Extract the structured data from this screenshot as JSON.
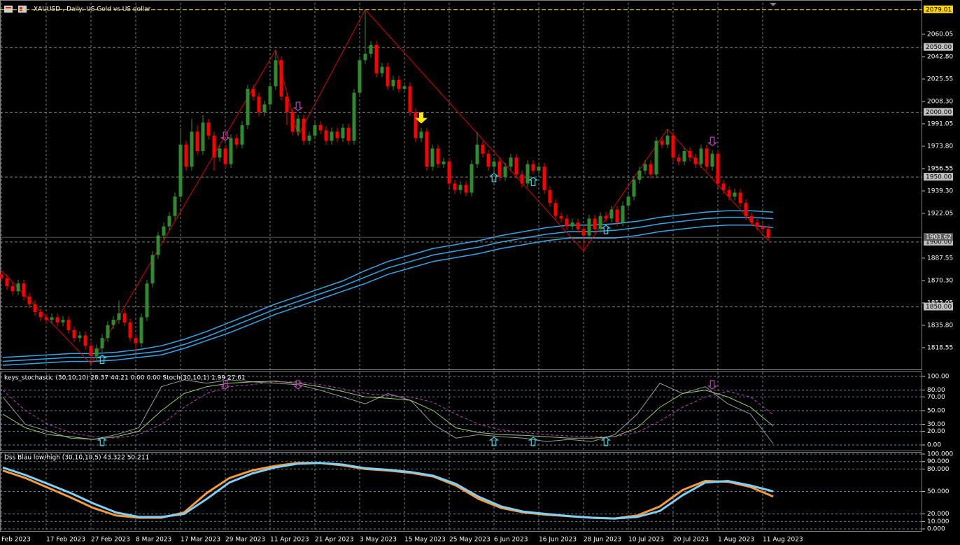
{
  "chart_data": [
    {
      "type": "candlestick",
      "title": "XAUUSD-, Daily:  US Gold vs US dollar",
      "categories": [
        "Feb 2023",
        null,
        null,
        null,
        null,
        null,
        null,
        null,
        "17 Feb 2023",
        null,
        null,
        null,
        null,
        null,
        null,
        null,
        "27 Feb 2023",
        null,
        null,
        null,
        null,
        null,
        null,
        null,
        "8 Mar 2023",
        null,
        null,
        null,
        null,
        null,
        null,
        null,
        "17 Mar 2023",
        null,
        null,
        null,
        null,
        null,
        null,
        null,
        "29 Mar 2023",
        null,
        null,
        null,
        null,
        null,
        null,
        null,
        "11 Apr 2023",
        null,
        null,
        null,
        null,
        null,
        null,
        null,
        "21 Apr 2023",
        null,
        null,
        null,
        null,
        null,
        null,
        null,
        "3 May 2023",
        null,
        null,
        null,
        null,
        null,
        null,
        null,
        "15 May 2023",
        null,
        null,
        null,
        null,
        null,
        null,
        null,
        "25 May 2023",
        null,
        null,
        null,
        null,
        null,
        null,
        null,
        "6 Jun 2023",
        null,
        null,
        null,
        null,
        null,
        null,
        null,
        "16 Jun 2023",
        null,
        null,
        null,
        null,
        null,
        null,
        null,
        "28 Jun 2023",
        null,
        null,
        null,
        null,
        null,
        null,
        null,
        "10 Jul 2023",
        null,
        null,
        null,
        null,
        null,
        null,
        null,
        "20 Jul 2023",
        null,
        null,
        null,
        null,
        null,
        null,
        null,
        "1 Aug 2023",
        null,
        null,
        null,
        null,
        null,
        null,
        null,
        "11 Aug 2023",
        null
      ],
      "open": [
        1875,
        1872,
        1866,
        1862,
        1868,
        1858,
        1852,
        1846,
        1842,
        1840,
        1842,
        1838,
        1840,
        1832,
        1826,
        1828,
        1820,
        1812,
        1818,
        1826,
        1836,
        1840,
        1845,
        1838,
        1826,
        1822,
        1842,
        1868,
        1890,
        1905,
        1912,
        1920,
        1935,
        1975,
        1958,
        1985,
        1970,
        1992,
        1982,
        1965,
        1972,
        1960,
        1980,
        1975,
        1990,
        2018,
        2012,
        2000,
        2006,
        2020,
        2040,
        2012,
        2000,
        1985,
        1995,
        1978,
        1982,
        1990,
        1986,
        1978,
        1985,
        1980,
        1988,
        1978,
        2015,
        2040,
        2045,
        2052,
        2030,
        2035,
        2020,
        2025,
        2018,
        2020,
        2000,
        1980,
        1985,
        1958,
        1972,
        1960,
        1962,
        1945,
        1940,
        1944,
        1938,
        1960,
        1975,
        1968,
        1958,
        1962,
        1950,
        1958,
        1965,
        1952,
        1945,
        1960,
        1955,
        1958,
        1940,
        1930,
        1920,
        1918,
        1912,
        1915,
        1910,
        1905,
        1918,
        1910,
        1920,
        1918,
        1925,
        1915,
        1928,
        1935,
        1948,
        1955,
        1960,
        1952,
        1978,
        1975,
        1982,
        1965,
        1962,
        1970,
        1965,
        1960,
        1972,
        1958,
        1968,
        1945,
        1940,
        1935,
        1938,
        1930,
        1920,
        1915,
        1912,
        1910
      ],
      "high": [
        1878,
        1875,
        1869,
        1871,
        1871,
        1861,
        1855,
        1849,
        1845,
        1845,
        1845,
        1843,
        1843,
        1835,
        1831,
        1831,
        1823,
        1821,
        1829,
        1839,
        1843,
        1855,
        1848,
        1841,
        1829,
        1845,
        1871,
        1893,
        1908,
        1915,
        1923,
        1938,
        1988,
        1978,
        1995,
        1990,
        1998,
        1995,
        1985,
        1975,
        1975,
        1983,
        1983,
        1993,
        2021,
        2021,
        2015,
        2009,
        2023,
        2048,
        2043,
        2015,
        2003,
        1998,
        1998,
        1985,
        1993,
        1993,
        1989,
        1988,
        1988,
        1991,
        1991,
        2018,
        2043,
        2079.01,
        2055,
        2055,
        2038,
        2038,
        2028,
        2028,
        2023,
        2023,
        2003,
        1988,
        1988,
        1975,
        1975,
        1965,
        1965,
        1948,
        1947,
        1947,
        1963,
        1985,
        1978,
        1971,
        1965,
        1965,
        1961,
        1968,
        1968,
        1955,
        1963,
        1963,
        1961,
        1961,
        1943,
        1933,
        1923,
        1921,
        1918,
        1918,
        1913,
        1921,
        1921,
        1923,
        1923,
        1928,
        1928,
        1931,
        1938,
        1951,
        1958,
        1963,
        1963,
        1981,
        1981,
        1987,
        1985,
        1968,
        1973,
        1973,
        1968,
        1975,
        1975,
        1971,
        1971,
        1948,
        1943,
        1941,
        1941,
        1933,
        1923,
        1918,
        1915,
        1913
      ],
      "low": [
        1869,
        1863,
        1859,
        1859,
        1855,
        1849,
        1843,
        1839,
        1837,
        1837,
        1835,
        1835,
        1829,
        1823,
        1823,
        1817,
        1806,
        1809,
        1815,
        1823,
        1833,
        1837,
        1835,
        1823,
        1815,
        1819,
        1839,
        1865,
        1887,
        1902,
        1909,
        1917,
        1932,
        1955,
        1955,
        1967,
        1967,
        1979,
        1955,
        1962,
        1957,
        1957,
        1972,
        1972,
        1987,
        2009,
        1997,
        1997,
        2003,
        2017,
        2009,
        1990,
        1982,
        1982,
        1975,
        1975,
        1979,
        1983,
        1975,
        1975,
        1977,
        1977,
        1975,
        1975,
        2012,
        2037,
        2042,
        2027,
        2027,
        2017,
        2017,
        2015,
        2015,
        1997,
        1977,
        1977,
        1955,
        1955,
        1957,
        1957,
        1942,
        1937,
        1937,
        1935,
        1935,
        1957,
        1965,
        1955,
        1955,
        1947,
        1947,
        1955,
        1949,
        1942,
        1942,
        1952,
        1952,
        1937,
        1927,
        1917,
        1915,
        1909,
        1909,
        1907,
        1893,
        1902,
        1907,
        1907,
        1915,
        1915,
        1912,
        1912,
        1925,
        1932,
        1945,
        1952,
        1949,
        1949,
        1972,
        1972,
        1962,
        1959,
        1959,
        1962,
        1957,
        1957,
        1955,
        1955,
        1942,
        1937,
        1932,
        1932,
        1927,
        1917,
        1912,
        1909,
        1907,
        1901
      ],
      "close": [
        1872,
        1866,
        1862,
        1868,
        1858,
        1852,
        1846,
        1842,
        1840,
        1842,
        1838,
        1840,
        1832,
        1826,
        1828,
        1820,
        1812,
        1818,
        1826,
        1836,
        1840,
        1845,
        1838,
        1826,
        1822,
        1842,
        1868,
        1890,
        1905,
        1912,
        1920,
        1935,
        1975,
        1958,
        1985,
        1970,
        1992,
        1982,
        1965,
        1972,
        1960,
        1980,
        1975,
        1990,
        2018,
        2012,
        2000,
        2006,
        2020,
        2040,
        2012,
        2000,
        1985,
        1995,
        1978,
        1982,
        1990,
        1986,
        1978,
        1985,
        1980,
        1988,
        1978,
        2015,
        2040,
        2045,
        2052,
        2030,
        2035,
        2020,
        2025,
        2018,
        2020,
        2000,
        1980,
        1985,
        1958,
        1972,
        1960,
        1962,
        1945,
        1940,
        1944,
        1938,
        1960,
        1975,
        1968,
        1958,
        1962,
        1950,
        1958,
        1965,
        1952,
        1945,
        1960,
        1955,
        1958,
        1940,
        1930,
        1920,
        1918,
        1912,
        1915,
        1910,
        1905,
        1918,
        1910,
        1920,
        1918,
        1925,
        1915,
        1928,
        1935,
        1948,
        1955,
        1960,
        1952,
        1978,
        1975,
        1982,
        1965,
        1962,
        1970,
        1965,
        1960,
        1972,
        1958,
        1968,
        1945,
        1940,
        1935,
        1938,
        1930,
        1920,
        1915,
        1912,
        1910,
        1903.62
      ],
      "up_color": "#2e8b2e",
      "down_color": "#ff0000",
      "zigzag_color": "#e00000",
      "ylim": [
        1801.8,
        2084.3
      ],
      "yticks": [
        2060.05,
        {
          "value": 2042.8,
          "label": "2042.80"
        },
        2025.55,
        {
          "value": 2008.3,
          "label": "2008.30"
        },
        1991.05,
        {
          "value": 1973.8,
          "label": "1973.80"
        },
        1956.55,
        {
          "value": 1939.3,
          "label": "1939.30"
        },
        1922.05,
        1887.55,
        {
          "value": 1870.3,
          "label": "1870.30"
        },
        1853.05,
        {
          "value": 1835.8,
          "label": "1835.80"
        },
        1818.55
      ],
      "levels": [
        {
          "value": 2050,
          "label": "2050.00"
        },
        {
          "value": 2000,
          "label": "2000.00"
        },
        {
          "value": 1950,
          "label": "1950.00"
        },
        {
          "value": 1900,
          "label": "1900.00"
        },
        {
          "value": 1850,
          "label": "1850.00"
        }
      ],
      "grid": true
    },
    {
      "type": "line",
      "series": [
        {
          "color": "#2fa8e8",
          "values": [
            1811,
            1812,
            1813,
            1814,
            1814,
            1815,
            1817,
            1820,
            1825,
            1831,
            1838,
            1845,
            1852,
            1858,
            1864,
            1870,
            1878,
            1885,
            1890,
            1895,
            1898,
            1901,
            1905,
            1908,
            1911,
            1913,
            1913,
            1914,
            1916,
            1919,
            1921,
            1923,
            1924,
            1924,
            1923
          ]
        },
        {
          "color": "#2fa8e8",
          "values": [
            1808,
            1809,
            1810,
            1811,
            1811,
            1812,
            1814,
            1816,
            1821,
            1827,
            1834,
            1841,
            1848,
            1854,
            1860,
            1866,
            1873,
            1880,
            1885,
            1890,
            1893,
            1896,
            1900,
            1903,
            1906,
            1908,
            1908,
            1909,
            1911,
            1914,
            1916,
            1918,
            1919,
            1919,
            1918
          ]
        },
        {
          "color": "#2fa8e8",
          "values": [
            1805,
            1806,
            1807,
            1808,
            1808,
            1809,
            1811,
            1813,
            1818,
            1824,
            1830,
            1837,
            1844,
            1850,
            1856,
            1862,
            1868,
            1875,
            1880,
            1885,
            1888,
            1891,
            1895,
            1898,
            1901,
            1903,
            1903,
            1903,
            1905,
            1908,
            1910,
            1912,
            1913,
            1913,
            1911
          ]
        }
      ]
    },
    {
      "type": "stochastic",
      "title": "keys_stochastic (30,10,10) 28.37 44.21 0.00 0.00 Stoch(30,10,1) 1.99 27.61",
      "series": [
        {
          "color": "#9a9a9a",
          "dash": false,
          "values": [
            70,
            30,
            20,
            10,
            8,
            15,
            25,
            85,
            95,
            90,
            95,
            92,
            90,
            88,
            80,
            70,
            60,
            75,
            65,
            30,
            10,
            15,
            12,
            10,
            5,
            8,
            5,
            15,
            45,
            90,
            75,
            85,
            60,
            45,
            1.99
          ]
        },
        {
          "color": "#9acd6a",
          "dash": false,
          "values": [
            45,
            25,
            15,
            12,
            8,
            12,
            20,
            50,
            75,
            85,
            90,
            92,
            93,
            90,
            85,
            78,
            70,
            68,
            65,
            50,
            25,
            18,
            15,
            14,
            12,
            10,
            10,
            12,
            25,
            55,
            75,
            80,
            70,
            55,
            27.61
          ]
        },
        {
          "color": "#c040c0",
          "dash": true,
          "values": [
            80,
            50,
            30,
            18,
            12,
            10,
            15,
            30,
            55,
            75,
            85,
            88,
            92,
            92,
            88,
            82,
            75,
            72,
            70,
            62,
            45,
            30,
            22,
            18,
            15,
            13,
            12,
            12,
            18,
            35,
            55,
            70,
            78,
            70,
            44.21
          ]
        }
      ],
      "ylim": [
        -9.2,
        107.1
      ],
      "yticks": [
        {
          "value": 100,
          "label": "100.00"
        },
        {
          "value": 80,
          "label": "80.00"
        },
        {
          "value": 70,
          "label": "70.00"
        },
        {
          "value": 50,
          "label": "50.00"
        },
        {
          "value": 30,
          "label": "30.00"
        },
        {
          "value": 20,
          "label": "20.00"
        },
        {
          "value": 0,
          "label": "0.00"
        }
      ],
      "grid": true
    },
    {
      "type": "dss",
      "title": "Dss Blau low/high (30,10,10,5) 43.322 50.211",
      "series": [
        {
          "color": "#f39a3c",
          "values": [
            78,
            68,
            55,
            42,
            28,
            18,
            15,
            15,
            22,
            48,
            68,
            78,
            84,
            88,
            88,
            85,
            80,
            78,
            75,
            70,
            58,
            40,
            28,
            22,
            19,
            17,
            15,
            14,
            18,
            30,
            52,
            64,
            63,
            56,
            43.322
          ]
        },
        {
          "color": "#7fd0f5",
          "values": [
            82,
            72,
            60,
            48,
            34,
            22,
            16,
            16,
            20,
            40,
            62,
            74,
            82,
            87,
            88,
            86,
            81,
            79,
            76,
            71,
            60,
            43,
            30,
            23,
            20,
            17,
            15,
            14,
            16,
            24,
            45,
            62,
            64,
            58,
            50.211
          ]
        }
      ],
      "ylim": [
        -3.7,
        102.8
      ],
      "yticks": [
        {
          "value": 100,
          "label": "100.000"
        },
        {
          "value": 90,
          "label": "90.000"
        },
        {
          "value": 80,
          "label": "80.000"
        },
        {
          "value": 50,
          "label": "50.000"
        },
        {
          "value": 20,
          "label": "20.000"
        },
        {
          "value": 10,
          "label": "10.000"
        },
        {
          "value": 0,
          "label": "0.000"
        }
      ],
      "grid": true
    }
  ]
}
